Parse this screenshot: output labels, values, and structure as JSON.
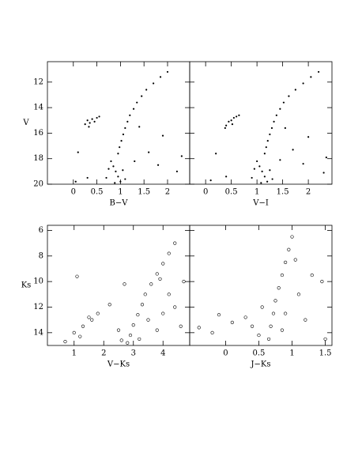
{
  "chart_data": [
    {
      "type": "scatter",
      "xlabel": "B−V",
      "ylabel": "V",
      "marker": "dot",
      "xlim": [
        -0.55,
        2.47
      ],
      "ylim": [
        20,
        10.4
      ],
      "xticks": [
        0,
        0.5,
        1,
        1.5,
        2
      ],
      "yticks": [
        12,
        14,
        16,
        18,
        20
      ],
      "x": [
        2.0,
        1.85,
        1.7,
        1.55,
        1.45,
        1.35,
        1.28,
        1.2,
        1.15,
        1.1,
        1.06,
        1.02,
        0.98,
        0.95,
        0.25,
        0.3,
        0.35,
        0.4,
        0.45,
        0.5,
        0.55,
        0.33,
        0.8,
        0.85,
        0.9,
        0.95,
        1.0,
        0.75,
        1.05,
        0.7,
        1.1,
        0.88,
        1.6,
        1.8,
        2.2,
        0.1,
        0.3,
        1.4,
        1.9,
        2.3,
        0.05,
        1.3
      ],
      "values": [
        11.2,
        11.6,
        12.1,
        12.6,
        13.1,
        13.6,
        14.1,
        14.6,
        15.1,
        15.6,
        16.1,
        16.6,
        17.1,
        17.6,
        15.3,
        15.0,
        15.2,
        14.9,
        15.1,
        14.8,
        14.7,
        15.5,
        18.2,
        18.6,
        19.0,
        19.4,
        19.8,
        18.8,
        18.9,
        19.5,
        19.6,
        19.9,
        17.5,
        18.5,
        19.0,
        17.5,
        19.5,
        15.5,
        16.2,
        17.8,
        19.8,
        18.2
      ]
    },
    {
      "type": "scatter",
      "xlabel": "V−I",
      "marker": "dot",
      "xlim": [
        -0.31,
        2.46
      ],
      "ylim": [
        20,
        10.4
      ],
      "xticks": [
        0,
        0.5,
        1,
        1.5,
        2
      ],
      "x": [
        2.2,
        2.05,
        1.9,
        1.75,
        1.62,
        1.52,
        1.45,
        1.38,
        1.33,
        1.29,
        1.25,
        1.21,
        1.18,
        1.15,
        0.4,
        0.45,
        0.5,
        0.55,
        0.6,
        0.65,
        0.38,
        0.52,
        1.0,
        1.05,
        1.1,
        1.15,
        1.2,
        0.95,
        1.25,
        0.9,
        1.3,
        1.08,
        1.7,
        1.9,
        2.3,
        0.2,
        0.4,
        1.55,
        2.0,
        2.35,
        0.1,
        1.45
      ],
      "values": [
        11.2,
        11.6,
        12.1,
        12.6,
        13.1,
        13.6,
        14.1,
        14.6,
        15.1,
        15.6,
        16.1,
        16.6,
        17.1,
        17.6,
        15.4,
        15.1,
        15.0,
        14.8,
        14.7,
        14.6,
        15.6,
        15.3,
        18.2,
        18.6,
        19.0,
        19.4,
        19.8,
        18.8,
        18.9,
        19.5,
        19.6,
        19.9,
        17.3,
        18.4,
        19.1,
        17.6,
        19.4,
        15.6,
        16.3,
        17.9,
        19.7,
        18.1
      ]
    },
    {
      "type": "scatter",
      "xlabel": "V−Ks",
      "ylabel": "Ks",
      "marker": "circle",
      "xlim": [
        0.1,
        4.9
      ],
      "ylim": [
        15,
        5.6
      ],
      "xticks": [
        1,
        2,
        3,
        4
      ],
      "yticks": [
        6,
        8,
        10,
        12,
        14
      ],
      "x": [
        4.4,
        4.2,
        4.0,
        3.8,
        3.6,
        3.4,
        3.3,
        3.15,
        3.0,
        2.9,
        2.8,
        1.0,
        1.3,
        1.6,
        1.8,
        1.2,
        0.7,
        1.5,
        2.5,
        3.5,
        4.0,
        3.2,
        2.6,
        3.8,
        4.4,
        4.7,
        4.2,
        3.9,
        2.2,
        1.1,
        2.7,
        4.6
      ],
      "values": [
        7.0,
        7.8,
        8.6,
        9.4,
        10.2,
        11.0,
        11.8,
        12.6,
        13.4,
        14.2,
        14.8,
        14.0,
        13.5,
        13.0,
        12.5,
        14.3,
        14.7,
        12.8,
        13.8,
        13.0,
        12.5,
        14.5,
        14.6,
        13.8,
        12.0,
        10.0,
        11.0,
        9.8,
        11.8,
        9.6,
        10.2,
        13.5
      ]
    },
    {
      "type": "scatter",
      "xlabel": "J−Ks",
      "marker": "circle",
      "xlim": [
        -0.54,
        1.6
      ],
      "ylim": [
        15,
        5.6
      ],
      "xticks": [
        0,
        0.5,
        1,
        1.5
      ],
      "x": [
        1.0,
        0.95,
        0.9,
        0.85,
        0.8,
        0.75,
        0.72,
        0.68,
        0.65,
        0.4,
        0.5,
        0.3,
        0.1,
        -0.2,
        -0.4,
        0.9,
        1.1,
        1.3,
        1.45,
        1.2,
        1.5,
        0.55,
        0.85,
        -0.1,
        1.05
      ],
      "values": [
        6.5,
        7.5,
        8.5,
        9.5,
        10.5,
        11.5,
        12.5,
        13.5,
        14.5,
        13.5,
        14.2,
        12.8,
        13.2,
        14.0,
        13.6,
        12.5,
        11.0,
        9.5,
        10.0,
        13.0,
        14.5,
        12.0,
        13.8,
        12.6,
        8.3
      ]
    }
  ]
}
